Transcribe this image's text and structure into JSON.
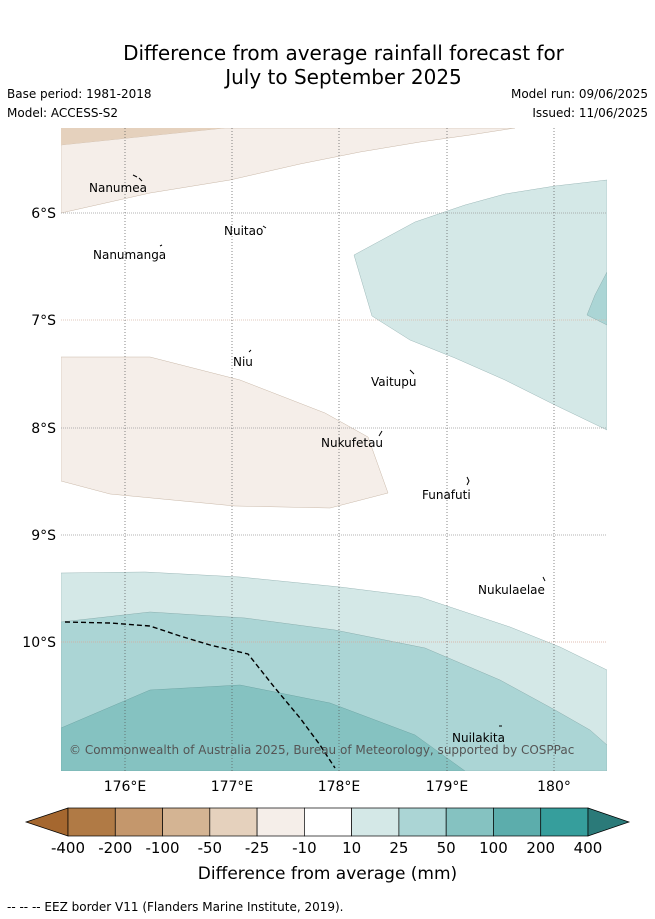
{
  "header": {
    "title_line1": "Difference from average rainfall forecast for",
    "title_line2": "July to September 2025",
    "base_period": "Base period: 1981-2018",
    "model": "Model: ACCESS-S2",
    "model_run": "Model run: 09/06/2025",
    "issued": "Issued: 11/06/2025"
  },
  "map": {
    "islands": [
      {
        "name": "Nanumea"
      },
      {
        "name": "Nuitao"
      },
      {
        "name": "Nanumanga"
      },
      {
        "name": "Niu"
      },
      {
        "name": "Vaitupu"
      },
      {
        "name": "Nukufetau"
      },
      {
        "name": "Funafuti"
      },
      {
        "name": "Nukulaelae"
      },
      {
        "name": "Nuilakita"
      }
    ],
    "lat_ticks": [
      "6°S",
      "7°S",
      "8°S",
      "9°S",
      "10°S"
    ],
    "lon_ticks": [
      "176°E",
      "177°E",
      "178°E",
      "179°E",
      "180°"
    ],
    "copyright": "© Commonwealth of Australia 2025, Bureau of Meteorology, supported by COSPPac"
  },
  "colorbar": {
    "ticks": [
      "-400",
      "-200",
      "-100",
      "-50",
      "-25",
      "-10",
      "10",
      "25",
      "50",
      "100",
      "200",
      "400"
    ],
    "colors": [
      "#a5672f",
      "#b07a45",
      "#c4976c",
      "#d4b493",
      "#e5d1bd",
      "#f5eee9",
      "#ffffff",
      "#d4e8e7",
      "#abd5d5",
      "#85c2c1",
      "#5cadac",
      "#369e9c",
      "#2b7a79"
    ],
    "title": "Difference from average (mm)"
  },
  "footer": {
    "legend_text": "-- -- -- EEZ border V11 (Flanders Marine Institute, 2019)."
  }
}
